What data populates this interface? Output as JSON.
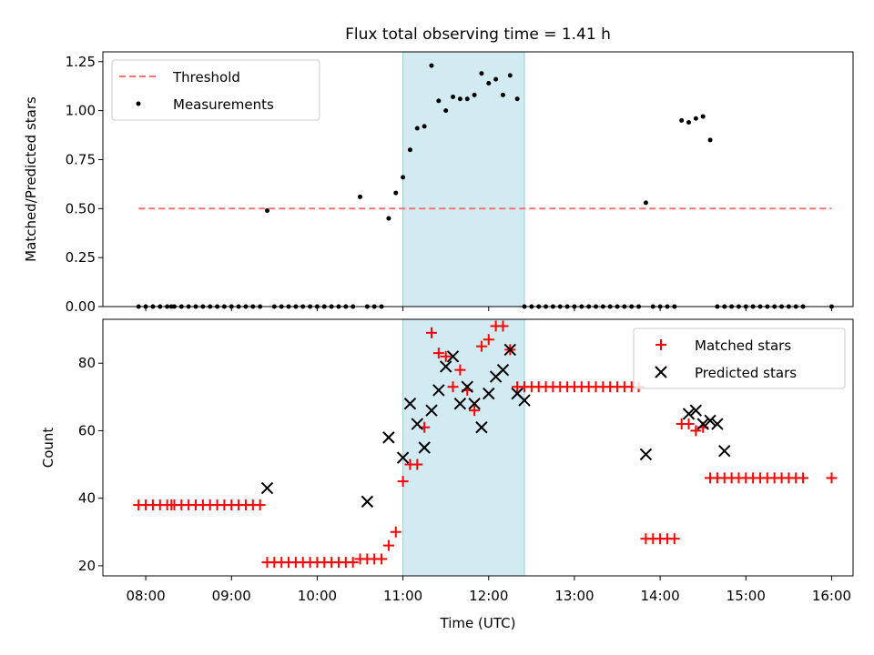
{
  "chart_data": [
    {
      "type": "scatter",
      "title": "Flux total observing time = 1.41 h",
      "ylabel": "Matched/Predicted stars",
      "xlim": [
        "07:30",
        "16:15"
      ],
      "ylim": [
        0,
        1.3
      ],
      "y_ticks": [
        "0.00",
        "0.25",
        "0.50",
        "0.75",
        "1.00",
        "1.25"
      ],
      "x_ticks": [
        "08:00",
        "09:00",
        "10:00",
        "11:00",
        "12:00",
        "13:00",
        "14:00",
        "15:00",
        "16:00"
      ],
      "grid": false,
      "legend_position": "top-left",
      "highlight_span": {
        "start": "11:00",
        "end": "12:25",
        "color": "#add8e6"
      },
      "series": [
        {
          "name": "Threshold",
          "kind": "line",
          "style": "dashed",
          "color": "#ff7070",
          "x": [
            "07:55",
            "16:00"
          ],
          "y": [
            0.5,
            0.5
          ]
        },
        {
          "name": "Measurements",
          "kind": "scatter",
          "marker": "dot",
          "color": "#000000",
          "x": [
            "07:55",
            "08:00",
            "08:05",
            "08:10",
            "08:15",
            "08:18",
            "08:20",
            "08:25",
            "08:30",
            "08:35",
            "08:40",
            "08:45",
            "08:50",
            "08:55",
            "09:00",
            "09:05",
            "09:10",
            "09:15",
            "09:20",
            "09:25",
            "09:30",
            "09:35",
            "09:40",
            "09:45",
            "09:50",
            "09:55",
            "10:00",
            "10:05",
            "10:10",
            "10:15",
            "10:20",
            "10:25",
            "10:30",
            "10:35",
            "10:40",
            "10:45",
            "10:50",
            "10:55",
            "11:00",
            "11:05",
            "11:10",
            "11:15",
            "11:20",
            "11:25",
            "11:30",
            "11:35",
            "11:40",
            "11:45",
            "11:50",
            "11:55",
            "12:00",
            "12:05",
            "12:10",
            "12:15",
            "12:20",
            "12:25",
            "12:30",
            "12:35",
            "12:40",
            "12:45",
            "12:50",
            "12:55",
            "13:00",
            "13:05",
            "13:10",
            "13:15",
            "13:20",
            "13:25",
            "13:30",
            "13:35",
            "13:40",
            "13:45",
            "13:50",
            "13:55",
            "14:00",
            "14:05",
            "14:10",
            "14:15",
            "14:20",
            "14:25",
            "14:30",
            "14:35",
            "14:40",
            "14:45",
            "14:50",
            "14:55",
            "15:00",
            "15:05",
            "15:10",
            "15:15",
            "15:20",
            "15:25",
            "15:30",
            "15:35",
            "15:40",
            "16:00"
          ],
          "y": [
            0,
            0,
            0,
            0,
            0,
            0,
            0,
            0,
            0,
            0,
            0,
            0,
            0,
            0,
            0,
            0,
            0,
            0,
            0,
            0.49,
            0,
            0,
            0,
            0,
            0,
            0,
            0,
            0,
            0,
            0,
            0,
            0,
            0.56,
            0,
            0,
            0,
            0.45,
            0.58,
            0.66,
            0.8,
            0.91,
            0.92,
            1.23,
            1.05,
            1.0,
            1.07,
            1.06,
            1.06,
            1.08,
            1.19,
            1.14,
            1.16,
            1.08,
            1.18,
            1.06,
            0,
            0,
            0,
            0,
            0,
            0,
            0,
            0,
            0,
            0,
            0,
            0,
            0,
            0,
            0,
            0,
            0,
            0.53,
            0,
            0,
            0,
            0,
            0.95,
            0.94,
            0.96,
            0.97,
            0.85,
            0,
            0,
            0,
            0,
            0,
            0,
            0,
            0,
            0,
            0,
            0,
            0,
            0,
            0
          ]
        }
      ]
    },
    {
      "type": "scatter",
      "xlabel": "Time (UTC)",
      "ylabel": "Count",
      "xlim": [
        "07:30",
        "16:15"
      ],
      "ylim": [
        17,
        93
      ],
      "y_ticks": [
        "20",
        "40",
        "60",
        "80"
      ],
      "x_ticks": [
        "08:00",
        "09:00",
        "10:00",
        "11:00",
        "12:00",
        "13:00",
        "14:00",
        "15:00",
        "16:00"
      ],
      "grid": false,
      "legend_position": "top-right",
      "highlight_span": {
        "start": "11:00",
        "end": "12:25",
        "color": "#add8e6"
      },
      "series": [
        {
          "name": "Matched stars",
          "marker": "plus",
          "color": "#ff0000",
          "x": [
            "07:55",
            "08:00",
            "08:05",
            "08:10",
            "08:15",
            "08:18",
            "08:20",
            "08:25",
            "08:30",
            "08:35",
            "08:40",
            "08:45",
            "08:50",
            "08:55",
            "09:00",
            "09:05",
            "09:10",
            "09:15",
            "09:20",
            "09:25",
            "09:30",
            "09:35",
            "09:40",
            "09:45",
            "09:50",
            "09:55",
            "10:00",
            "10:05",
            "10:10",
            "10:15",
            "10:20",
            "10:25",
            "10:30",
            "10:35",
            "10:40",
            "10:45",
            "10:50",
            "10:55",
            "11:00",
            "11:05",
            "11:10",
            "11:15",
            "11:20",
            "11:25",
            "11:30",
            "11:35",
            "11:40",
            "11:45",
            "11:50",
            "11:55",
            "12:00",
            "12:05",
            "12:10",
            "12:15",
            "12:20",
            "12:25",
            "12:30",
            "12:35",
            "12:40",
            "12:45",
            "12:50",
            "12:55",
            "13:00",
            "13:05",
            "13:10",
            "13:15",
            "13:20",
            "13:25",
            "13:30",
            "13:35",
            "13:40",
            "13:45",
            "13:50",
            "13:55",
            "14:00",
            "14:05",
            "14:10",
            "14:15",
            "14:20",
            "14:25",
            "14:30",
            "14:35",
            "14:40",
            "14:45",
            "14:50",
            "14:55",
            "15:00",
            "15:05",
            "15:10",
            "15:15",
            "15:20",
            "15:25",
            "15:30",
            "15:35",
            "15:40",
            "16:00"
          ],
          "y": [
            38,
            38,
            38,
            38,
            38,
            38,
            38,
            38,
            38,
            38,
            38,
            38,
            38,
            38,
            38,
            38,
            38,
            38,
            38,
            21,
            21,
            21,
            21,
            21,
            21,
            21,
            21,
            21,
            21,
            21,
            21,
            21,
            22,
            22,
            22,
            22,
            26,
            30,
            45,
            50,
            50,
            61,
            89,
            83,
            82,
            73,
            78,
            72,
            66,
            85,
            87,
            91,
            91,
            84,
            73,
            73,
            73,
            73,
            73,
            73,
            73,
            73,
            73,
            73,
            73,
            73,
            73,
            73,
            73,
            73,
            73,
            73,
            28,
            28,
            28,
            28,
            28,
            62,
            62,
            60,
            61,
            46,
            46,
            46,
            46,
            46,
            46,
            46,
            46,
            46,
            46,
            46,
            46,
            46,
            46,
            46
          ]
        },
        {
          "name": "Predicted stars",
          "marker": "x",
          "color": "#000000",
          "x": [
            "09:25",
            "10:35",
            "10:50",
            "11:00",
            "11:05",
            "11:10",
            "11:15",
            "11:20",
            "11:25",
            "11:30",
            "11:35",
            "11:40",
            "11:45",
            "11:50",
            "11:55",
            "12:00",
            "12:05",
            "12:10",
            "12:15",
            "12:20",
            "12:25",
            "13:50",
            "14:20",
            "14:25",
            "14:30",
            "14:35",
            "14:40",
            "14:45"
          ],
          "y": [
            43,
            39,
            58,
            52,
            68,
            62,
            55,
            66,
            72,
            79,
            82,
            68,
            73,
            68,
            61,
            71,
            76,
            78,
            84,
            71,
            69,
            53,
            65,
            66,
            62,
            63,
            62,
            54
          ]
        }
      ]
    }
  ]
}
